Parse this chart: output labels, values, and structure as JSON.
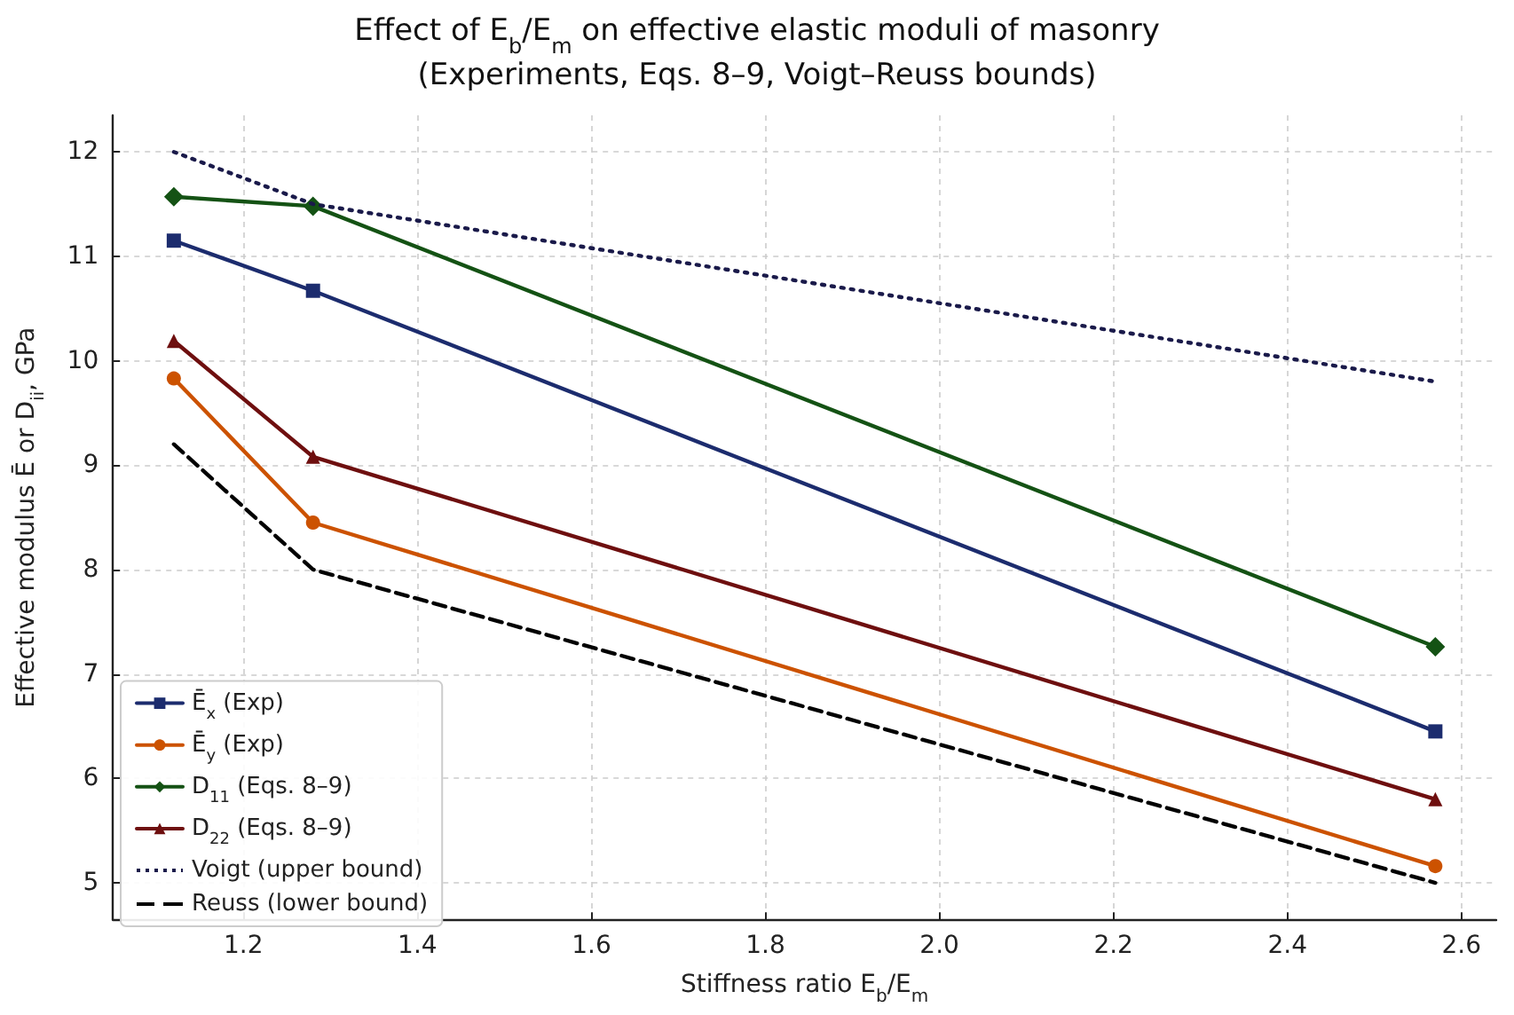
{
  "chart_data": {
    "type": "line",
    "title": "Effect of E$_{b}$/E$_{m}$ on effective elastic moduli of masonry",
    "subtitle": "(Experiments, Eqs. 8–9, Voigt–Reuss bounds)",
    "xlabel": "Stiffness ratio E$_{b}$/E$_{m}$",
    "ylabel": "Effective modulus Ē or D$_{ii}$, GPa",
    "x": [
      1.12,
      1.28,
      2.57
    ],
    "series": [
      {
        "name": "Ē$_{x}$ (Exp)",
        "color": "#1c2c6e",
        "marker": "square",
        "line_style": "solid",
        "values": [
          11.15,
          10.67,
          6.45
        ]
      },
      {
        "name": "Ē$_{y}$ (Exp)",
        "color": "#cc5200",
        "marker": "circle",
        "line_style": "solid",
        "values": [
          9.83,
          8.45,
          5.16
        ]
      },
      {
        "name": "D$_{11}$ (Eqs. 8–9)",
        "color": "#145214",
        "marker": "diamond",
        "line_style": "solid",
        "values": [
          11.57,
          11.48,
          7.26
        ]
      },
      {
        "name": "D$_{22}$ (Eqs. 8–9)",
        "color": "#6e0f0f",
        "marker": "triangle",
        "line_style": "solid",
        "values": [
          10.19,
          9.08,
          5.8
        ]
      },
      {
        "name": "Voigt (upper bound)",
        "color": "#1a1a4a",
        "marker": "none",
        "line_style": "dotted",
        "values": [
          12.0,
          11.5,
          9.8
        ]
      },
      {
        "name": "Reuss (lower bound)",
        "color": "#000000",
        "marker": "none",
        "line_style": "dashed",
        "values": [
          9.2,
          8.0,
          5.0
        ]
      }
    ],
    "xlim": [
      1.05,
      2.64
    ],
    "xticks": [
      1.2,
      1.4,
      1.6,
      1.8,
      {
        "value": 2,
        "label": "2.0"
      },
      2.2,
      2.4,
      2.6
    ],
    "ylim": [
      4.65,
      12.35
    ],
    "yticks": [
      5,
      6,
      7,
      8,
      9,
      10,
      11,
      12
    ],
    "grid": true,
    "legend": "bottom left"
  }
}
